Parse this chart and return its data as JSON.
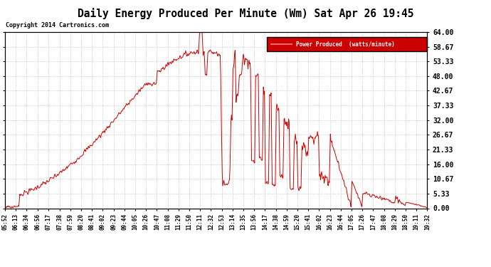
{
  "title": "Daily Energy Produced Per Minute (Wm) Sat Apr 26 19:45",
  "copyright": "Copyright 2014 Cartronics.com",
  "legend_label": "Power Produced  (watts/minute)",
  "legend_color": "#ff0000",
  "legend_bg": "#cc0000",
  "legend_text_color": "#ffffff",
  "line_color": "#cc0000",
  "bg_color": "#ffffff",
  "grid_color": "#bbbbbb",
  "title_fontsize": 11,
  "ylim": [
    0.0,
    64.0
  ],
  "yticks": [
    0.0,
    5.33,
    10.67,
    16.0,
    21.33,
    26.67,
    32.0,
    37.33,
    42.67,
    48.0,
    53.33,
    58.67,
    64.0
  ],
  "xtick_labels": [
    "05:52",
    "06:13",
    "06:34",
    "06:56",
    "07:17",
    "07:38",
    "07:59",
    "08:20",
    "08:41",
    "09:02",
    "09:23",
    "09:44",
    "10:05",
    "10:26",
    "10:47",
    "11:08",
    "11:29",
    "11:50",
    "12:11",
    "12:32",
    "12:53",
    "13:14",
    "13:35",
    "13:56",
    "14:17",
    "14:38",
    "14:59",
    "15:20",
    "15:41",
    "16:02",
    "16:23",
    "16:44",
    "17:05",
    "17:26",
    "17:47",
    "18:08",
    "18:29",
    "18:50",
    "19:11",
    "19:32"
  ]
}
